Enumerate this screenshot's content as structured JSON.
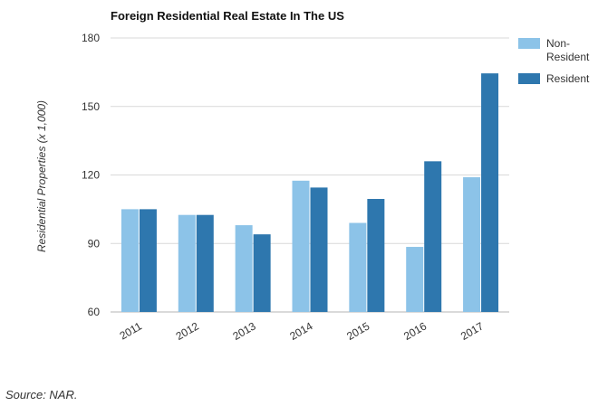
{
  "source_note": "Source: NAR.",
  "chart_data": {
    "type": "bar",
    "title": "Foreign Residential Real Estate In The US",
    "xlabel": "",
    "ylabel": "Residential Properties (x 1,000)",
    "categories": [
      "2011",
      "2012",
      "2013",
      "2014",
      "2015",
      "2016",
      "2017"
    ],
    "series": [
      {
        "name": "Non-Resident",
        "color": "#8cc3e8",
        "values": [
          105,
          102.5,
          98,
          117.5,
          99,
          88.5,
          119
        ]
      },
      {
        "name": "Resident",
        "color": "#2e77ae",
        "values": [
          105,
          102.5,
          94,
          114.5,
          109.5,
          126,
          164.5
        ]
      }
    ],
    "ylim": [
      60,
      180
    ],
    "yticks": [
      60,
      90,
      120,
      150,
      180
    ],
    "grid": true,
    "legend_position": "top-right"
  }
}
